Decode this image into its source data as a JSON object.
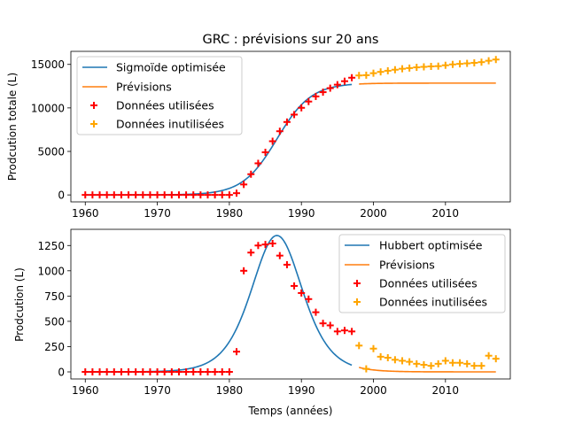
{
  "chart_data": [
    {
      "type": "line",
      "title": "GRC : prévisions sur 20 ans",
      "xlabel": "",
      "ylabel": "Prodcution totale (L)",
      "xlim": [
        1958,
        2019
      ],
      "ylim": [
        -800,
        16500
      ],
      "xticks": [
        1960,
        1970,
        1980,
        1990,
        2000,
        2010
      ],
      "yticks": [
        0,
        5000,
        10000,
        15000
      ],
      "legend_position": "top-left",
      "grid": false,
      "series": [
        {
          "name": "Sigmoïde optimisée",
          "kind": "line",
          "color": "#1f77b4",
          "model": "logistic",
          "params": {
            "L": 12850,
            "k": 0.42,
            "x0": 1986.6
          },
          "range": [
            1960,
            1997
          ]
        },
        {
          "name": "Prévisions",
          "kind": "line",
          "color": "#ff7f0e",
          "model": "logistic",
          "params": {
            "L": 12850,
            "k": 0.42,
            "x0": 1986.6
          },
          "range": [
            1998,
            2017
          ]
        },
        {
          "name": "Données utilisées",
          "kind": "scatter",
          "marker": "plus",
          "color": "#ff0000",
          "x": [
            1960,
            1961,
            1962,
            1963,
            1964,
            1965,
            1966,
            1967,
            1968,
            1969,
            1970,
            1971,
            1972,
            1973,
            1974,
            1975,
            1976,
            1977,
            1978,
            1979,
            1980,
            1981,
            1982,
            1983,
            1984,
            1985,
            1986,
            1987,
            1988,
            1989,
            1990,
            1991,
            1992,
            1993,
            1994,
            1995,
            1996,
            1997
          ],
          "y": [
            0,
            0,
            0,
            0,
            0,
            0,
            0,
            0,
            0,
            0,
            0,
            0,
            0,
            0,
            0,
            0,
            0,
            0,
            0,
            0,
            0,
            200,
            1200,
            2380,
            3630,
            4900,
            6170,
            7320,
            8380,
            9230,
            10010,
            10730,
            11320,
            11810,
            12270,
            12670,
            13070,
            13470
          ]
        },
        {
          "name": "Données inutilisées",
          "kind": "scatter",
          "marker": "plus",
          "color": "#ffa500",
          "x": [
            1998,
            1999,
            2000,
            2001,
            2002,
            2003,
            2004,
            2005,
            2006,
            2007,
            2008,
            2009,
            2010,
            2011,
            2012,
            2013,
            2014,
            2015,
            2016,
            2017
          ],
          "y": [
            13730,
            13760,
            13990,
            14140,
            14270,
            14390,
            14500,
            14580,
            14660,
            14720,
            14770,
            14800,
            14900,
            15000,
            15060,
            15120,
            15180,
            15260,
            15420,
            15560
          ]
        }
      ]
    },
    {
      "type": "line",
      "title": "",
      "xlabel": "Temps (années)",
      "ylabel": "Prodcution (L)",
      "xlim": [
        1958,
        2019
      ],
      "ylim": [
        -70,
        1410
      ],
      "xticks": [
        1960,
        1970,
        1980,
        1990,
        2000,
        2010
      ],
      "yticks": [
        0,
        250,
        500,
        750,
        1000,
        1250
      ],
      "legend_position": "top-right",
      "grid": false,
      "series": [
        {
          "name": "Hubbert optimisée",
          "kind": "line",
          "color": "#1f77b4",
          "model": "hubbert",
          "params": {
            "L": 12850,
            "k": 0.42,
            "x0": 1986.6
          },
          "range": [
            1960,
            1997
          ]
        },
        {
          "name": "Prévisions",
          "kind": "line",
          "color": "#ff7f0e",
          "model": "hubbert",
          "params": {
            "L": 12850,
            "k": 0.42,
            "x0": 1986.6
          },
          "range": [
            1998,
            2017
          ]
        },
        {
          "name": "Données utilisées",
          "kind": "scatter",
          "marker": "plus",
          "color": "#ff0000",
          "x": [
            1960,
            1961,
            1962,
            1963,
            1964,
            1965,
            1966,
            1967,
            1968,
            1969,
            1970,
            1971,
            1972,
            1973,
            1974,
            1975,
            1976,
            1977,
            1978,
            1979,
            1980,
            1981,
            1982,
            1983,
            1984,
            1985,
            1986,
            1987,
            1988,
            1989,
            1990,
            1991,
            1992,
            1993,
            1994,
            1995,
            1996,
            1997
          ],
          "y": [
            0,
            0,
            0,
            0,
            0,
            0,
            0,
            0,
            0,
            0,
            0,
            0,
            0,
            0,
            0,
            0,
            0,
            0,
            0,
            0,
            0,
            200,
            1000,
            1180,
            1250,
            1260,
            1270,
            1150,
            1060,
            850,
            780,
            720,
            590,
            480,
            460,
            400,
            410,
            400
          ]
        },
        {
          "name": "Données inutilisées",
          "kind": "scatter",
          "marker": "plus",
          "color": "#ffa500",
          "x": [
            1998,
            1999,
            2000,
            2001,
            2002,
            2003,
            2004,
            2005,
            2006,
            2007,
            2008,
            2009,
            2010,
            2011,
            2012,
            2013,
            2014,
            2015,
            2016,
            2017
          ],
          "y": [
            260,
            30,
            230,
            150,
            140,
            120,
            110,
            100,
            80,
            70,
            60,
            80,
            110,
            90,
            90,
            80,
            60,
            60,
            160,
            130
          ]
        }
      ]
    }
  ]
}
